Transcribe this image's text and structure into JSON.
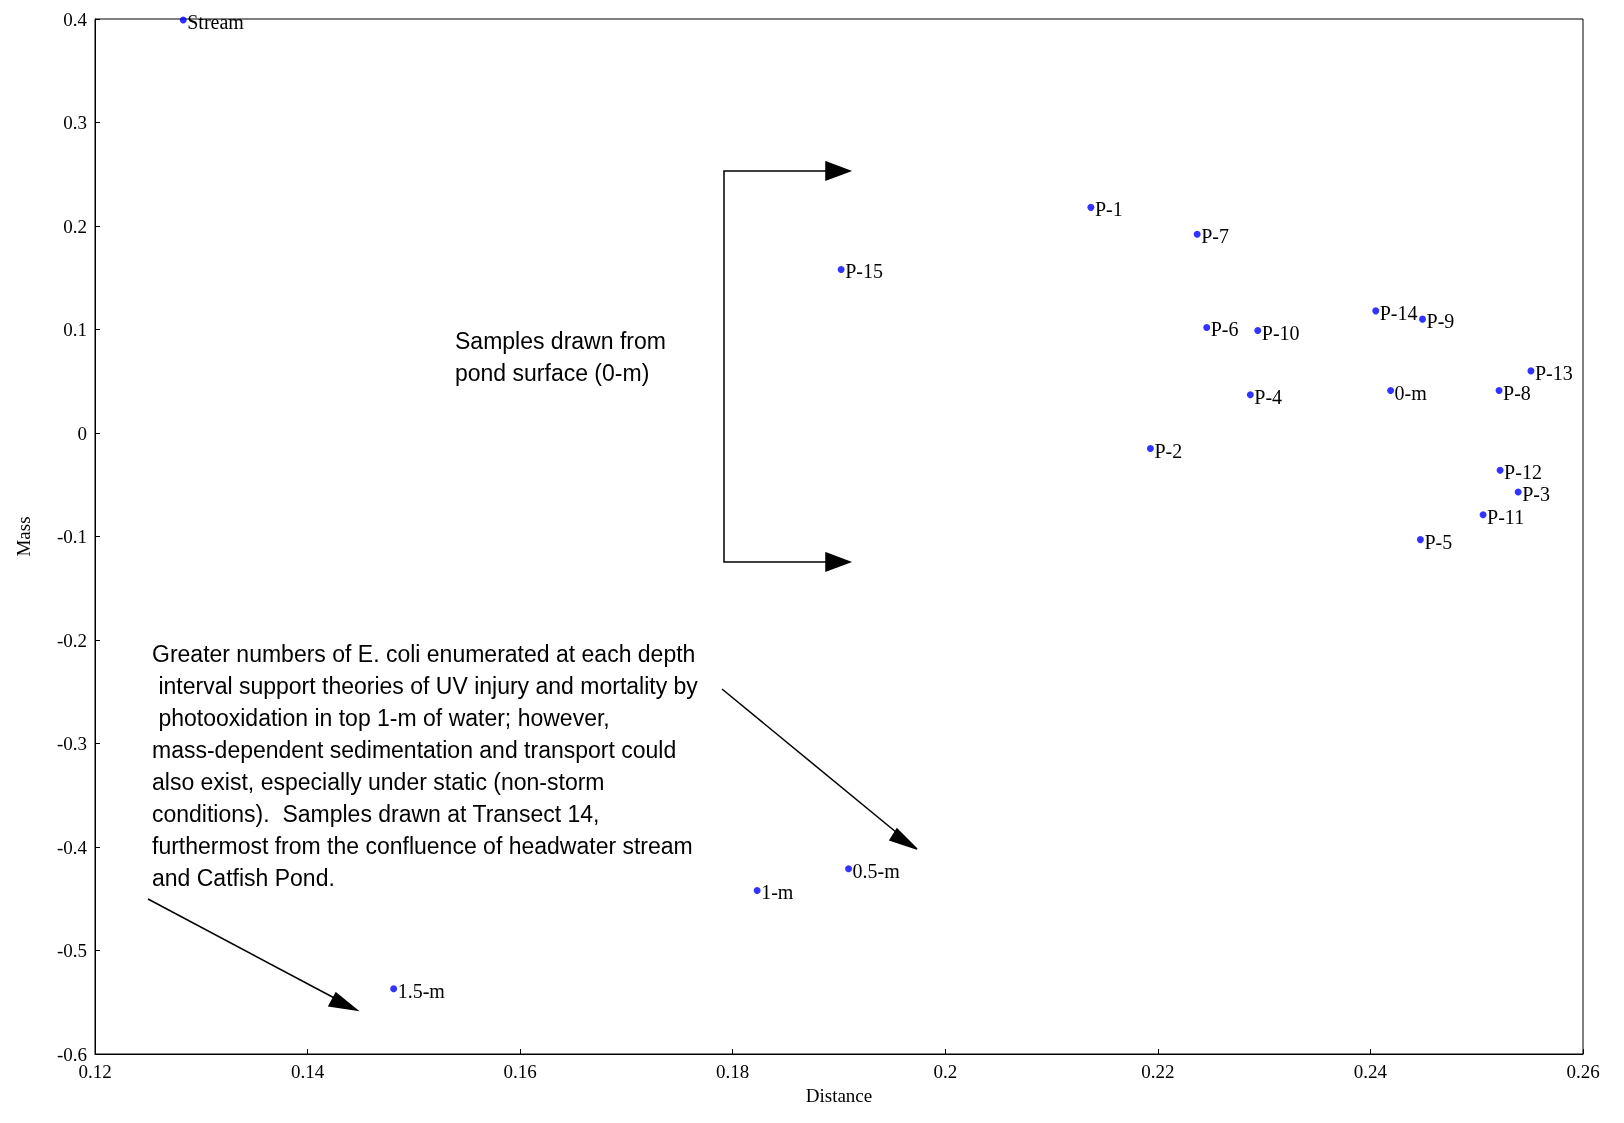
{
  "chart_data": {
    "type": "scatter",
    "xlabel": "Distance",
    "ylabel": "Mass",
    "xlim": [
      0.12,
      0.26
    ],
    "xticks": [
      0.12,
      0.14,
      0.16,
      0.18,
      0.2,
      0.22,
      0.24,
      0.26
    ],
    "ylim": [
      -0.6,
      0.4
    ],
    "yticks": [
      -0.6,
      -0.5,
      -0.4,
      -0.3,
      -0.2,
      -0.1,
      0,
      0.1,
      0.2,
      0.3,
      0.4
    ],
    "marker": "circle",
    "series": [
      {
        "color": "#0000ff",
        "x": [
          0.1283,
          0.2137,
          0.2237,
          0.1902,
          0.2405,
          0.2449,
          0.2246,
          0.2294,
          0.2551,
          0.2287,
          0.2419,
          0.2521,
          0.2193,
          0.2522,
          0.2539,
          0.2506,
          0.2447,
          0.1909,
          0.1823,
          0.1481
        ],
        "values": [
          0.399,
          0.218,
          0.192,
          0.158,
          0.118,
          0.11,
          0.102,
          0.099,
          0.06,
          0.037,
          0.041,
          0.041,
          -0.015,
          -0.036,
          -0.057,
          -0.079,
          -0.103,
          -0.421,
          -0.442,
          -0.537
        ]
      }
    ],
    "annotations": [
      "Samples drawn from pond surface (0-m)",
      "Greater numbers of E. coli enumerated at each depth interval support theories of UV injury and mortality by photooxidation in top 1-m of water; however, mass-dependent sedimentation and transport could also exist, especially under static (non-storm conditions).  Samples drawn at Transect 14, furthermost from the confluence of headwater stream and Catfish Pond.",
      {
        "text": "Stream",
        "x": 0.1283,
        "y": 0.399
      },
      {
        "text": "P-1",
        "x": 0.2137,
        "y": 0.218
      },
      {
        "text": "P-7",
        "x": 0.2237,
        "y": 0.192
      },
      {
        "text": "P-15",
        "x": 0.1902,
        "y": 0.158
      },
      {
        "text": "P-14",
        "x": 0.2405,
        "y": 0.118
      },
      {
        "text": "P-9",
        "x": 0.2449,
        "y": 0.11
      },
      {
        "text": "P-6",
        "x": 0.2246,
        "y": 0.102
      },
      {
        "text": "P-10",
        "x": 0.2294,
        "y": 0.099
      },
      {
        "text": "P-13",
        "x": 0.2551,
        "y": 0.06
      },
      {
        "text": "P-4",
        "x": 0.2287,
        "y": 0.037
      },
      {
        "text": "0-m",
        "x": 0.2419,
        "y": 0.041
      },
      {
        "text": "P-8",
        "x": 0.2521,
        "y": 0.041
      },
      {
        "text": "P-2",
        "x": 0.2193,
        "y": -0.015
      },
      {
        "text": "P-12",
        "x": 0.2522,
        "y": -0.036
      },
      {
        "text": "P-3",
        "x": 0.2539,
        "y": -0.057
      },
      {
        "text": "P-11",
        "x": 0.2506,
        "y": -0.079
      },
      {
        "text": "P-5",
        "x": 0.2447,
        "y": -0.103
      },
      {
        "text": "0.5-m",
        "x": 0.1909,
        "y": -0.421
      },
      {
        "text": "1-m",
        "x": 0.1823,
        "y": -0.442
      },
      {
        "text": "1.5-m",
        "x": 0.1481,
        "y": -0.537
      }
    ]
  }
}
